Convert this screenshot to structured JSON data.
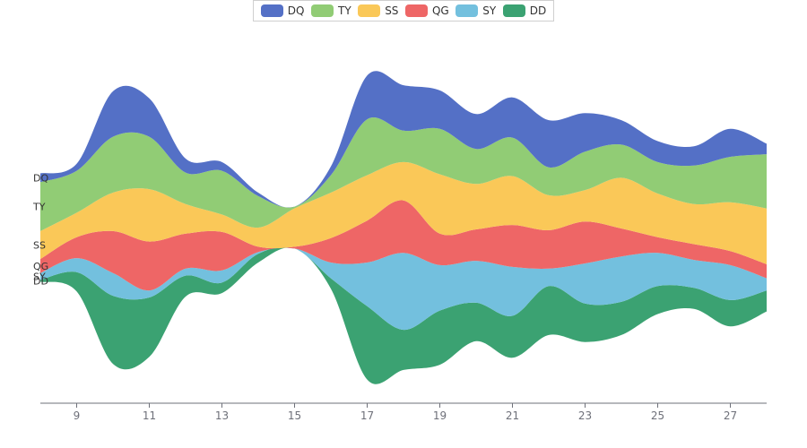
{
  "chart_data": {
    "type": "area",
    "x": [
      8,
      9,
      10,
      11,
      12,
      13,
      14,
      15,
      16,
      17,
      18,
      19,
      20,
      21,
      22,
      23,
      24,
      25,
      26,
      27,
      28
    ],
    "xticks": [
      "9",
      "11",
      "13",
      "15",
      "17",
      "19",
      "21",
      "23",
      "25",
      "27"
    ],
    "series": [
      {
        "name": "DD",
        "color": "#3ba272",
        "values": [
          0.5,
          5.5,
          19.5,
          17.0,
          6.0,
          3.0,
          2.5,
          0.0,
          3.0,
          21.0,
          11.5,
          15.5,
          11.0,
          12.0,
          14.0,
          11.0,
          9.5,
          8.0,
          6.0,
          7.5,
          6.0
        ]
      },
      {
        "name": "SY",
        "color": "#73c0de",
        "values": [
          2.0,
          4.0,
          6.5,
          2.0,
          2.0,
          3.5,
          0.5,
          0.0,
          4.5,
          12.5,
          22.0,
          13.0,
          12.0,
          14.0,
          5.0,
          11.5,
          13.0,
          9.5,
          8.0,
          10.0,
          3.5
        ]
      },
      {
        "name": "QG",
        "color": "#ee6666",
        "values": [
          4.0,
          6.0,
          12.0,
          14.0,
          10.0,
          11.0,
          1.5,
          0.5,
          7.0,
          12.0,
          15.0,
          9.0,
          9.0,
          12.0,
          11.0,
          12.0,
          8.0,
          4.5,
          4.5,
          4.0,
          4.0
        ]
      },
      {
        "name": "SS",
        "color": "#fac858",
        "values": [
          8.0,
          7.0,
          11.0,
          15.0,
          8.5,
          5.0,
          5.5,
          11.0,
          13.0,
          13.0,
          11.0,
          17.0,
          13.0,
          14.0,
          10.0,
          9.0,
          14.5,
          12.5,
          11.5,
          14.0,
          16.0
        ]
      },
      {
        "name": "TY",
        "color": "#91cc75",
        "values": [
          14.0,
          12.0,
          16.0,
          15.0,
          9.0,
          12.5,
          9.0,
          0.5,
          5.0,
          16.0,
          9.0,
          13.0,
          10.0,
          11.0,
          8.0,
          11.0,
          9.5,
          9.0,
          11.0,
          13.0,
          15.5
        ]
      },
      {
        "name": "DQ",
        "color": "#5470c6",
        "values": [
          2.5,
          2.0,
          13.0,
          11.0,
          4.0,
          2.5,
          1.0,
          0.0,
          2.5,
          12.5,
          13.0,
          11.0,
          10.0,
          11.5,
          13.5,
          11.0,
          7.0,
          6.0,
          5.5,
          8.0,
          3.0
        ]
      }
    ],
    "legend": [
      "DQ",
      "TY",
      "SS",
      "QG",
      "SY",
      "DD"
    ],
    "legend_position": "top-center",
    "axis_color": "#6e7079",
    "grid": false
  }
}
